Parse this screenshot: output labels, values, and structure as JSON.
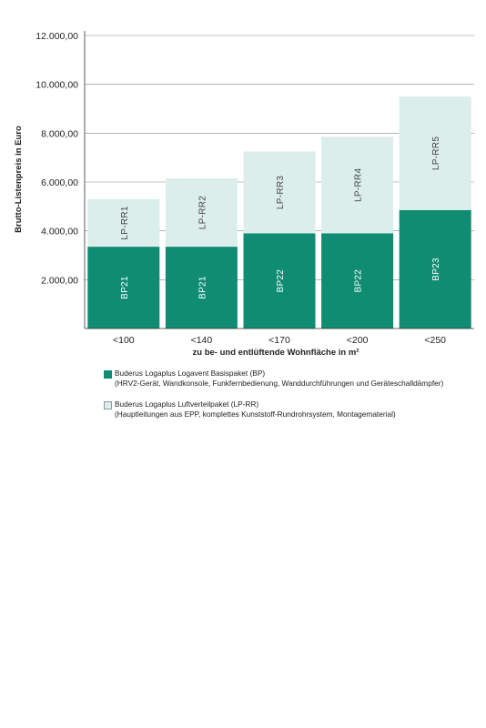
{
  "chart_data": {
    "type": "bar",
    "stacked": true,
    "categories": [
      "<100",
      "<140",
      "<170",
      "<200",
      "<250"
    ],
    "series": [
      {
        "name": "Buderus Logaplus Logavent Basispaket (BP)",
        "color": "#0f8c72",
        "values": [
          3350,
          3350,
          3900,
          3900,
          4850
        ],
        "labels": [
          "BP21",
          "BP21",
          "BP22",
          "BP22",
          "BP23"
        ]
      },
      {
        "name": "Buderus Logaplus Luftverteilpaket (LP-RR)",
        "color": "#dbeeea",
        "values": [
          1950,
          2800,
          3350,
          3950,
          4650
        ],
        "labels": [
          "LP-RR1",
          "LP-RR2",
          "LP-RR3",
          "LP-RR4",
          "LP-RR5"
        ]
      }
    ],
    "ylabel": "Brutto-Listenpreis in Euro",
    "xlabel": "zu be- und entlüftende Wohnfläche in m²",
    "ylim": [
      0,
      12000
    ],
    "yticks": [
      0,
      2000,
      4000,
      6000,
      8000,
      10000,
      12000
    ],
    "ytick_labels": [
      "",
      "2.000,00",
      "4.000,00",
      "6.000,00",
      "8.000,00",
      "10.000,00",
      "12.000,00"
    ],
    "grid": true,
    "legend": {
      "placement": "bottom",
      "items": [
        {
          "swatch_color": "#0f8c72",
          "title": "Buderus Logaplus Logavent Basispaket (BP)",
          "detail": "(HRV2-Gerät, Wandkonsole, Funkfernbedienung, Wanddurchführungen und Geräteschalldämpfer)"
        },
        {
          "swatch_color": "#dbeeea",
          "title": "Buderus Logaplus Luftverteilpaket (LP-RR)",
          "detail": "(Hauptleitungen aus EPP, komplettes Kunststoff-Rundrohrsystem, Montagematerial)"
        }
      ]
    }
  }
}
